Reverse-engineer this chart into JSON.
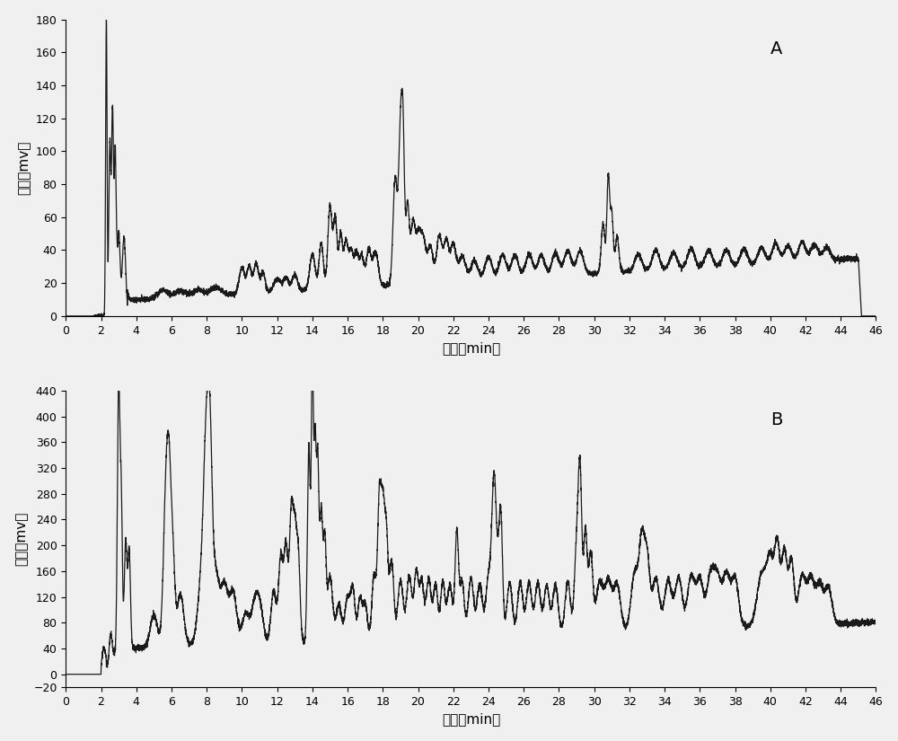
{
  "panel_A": {
    "label": "A",
    "xlabel": "时间（min）",
    "ylabel": "电压（mv）",
    "xlim": [
      0,
      46
    ],
    "ylim": [
      0,
      180
    ],
    "yticks": [
      0,
      20,
      40,
      60,
      80,
      100,
      120,
      140,
      160,
      180
    ],
    "xticks": [
      0,
      2,
      4,
      6,
      8,
      10,
      12,
      14,
      16,
      18,
      20,
      22,
      24,
      26,
      28,
      30,
      32,
      34,
      36,
      38,
      40,
      42,
      44,
      46
    ]
  },
  "panel_B": {
    "label": "B",
    "xlabel": "时间（min）",
    "ylabel": "电压（mv）",
    "xlim": [
      0,
      46
    ],
    "ylim": [
      -20,
      440
    ],
    "yticks": [
      -20,
      0,
      40,
      80,
      120,
      160,
      200,
      240,
      280,
      320,
      360,
      400,
      440
    ],
    "xticks": [
      0,
      2,
      4,
      6,
      8,
      10,
      12,
      14,
      16,
      18,
      20,
      22,
      24,
      26,
      28,
      30,
      32,
      34,
      36,
      38,
      40,
      42,
      44,
      46
    ]
  },
  "line_color": "#1a1a1a",
  "line_width": 0.9,
  "background_color": "#f0f0f0",
  "label_fontsize": 11,
  "tick_fontsize": 9,
  "panel_label_fontsize": 14
}
